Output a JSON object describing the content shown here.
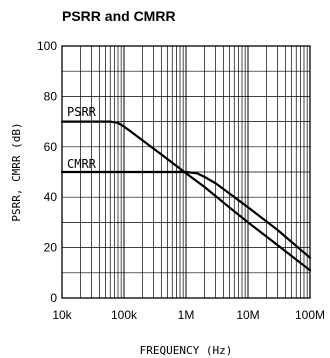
{
  "chart_data": {
    "type": "line",
    "title": "PSRR and CMRR",
    "xlabel": "FREQUENCY (Hz)",
    "ylabel": "PSRR, CMRR (dB)",
    "x_scale": "log",
    "xlim": [
      10000,
      100000000
    ],
    "ylim": [
      0,
      100
    ],
    "x_ticks": [
      10000,
      100000,
      1000000,
      10000000,
      100000000
    ],
    "x_tick_labels": [
      "10k",
      "100k",
      "1M",
      "10M",
      "100M"
    ],
    "y_ticks": [
      0,
      20,
      40,
      60,
      80,
      100
    ],
    "y_tick_labels": [
      "0",
      "20",
      "40",
      "60",
      "80",
      "100"
    ],
    "grid": true,
    "series": [
      {
        "name": "PSRR",
        "x": [
          10000,
          30000,
          60000,
          80000,
          100000,
          130000,
          200000,
          400000,
          1000000,
          2000000,
          5000000,
          10000000,
          30000000,
          100000000
        ],
        "y": [
          70,
          70,
          70,
          69.5,
          68,
          66,
          62.5,
          57,
          49.5,
          44,
          36,
          30,
          21,
          11
        ]
      },
      {
        "name": "CMRR",
        "x": [
          10000,
          100000,
          500000,
          1000000,
          1500000,
          2000000,
          3000000,
          5000000,
          10000000,
          30000000,
          100000000
        ],
        "y": [
          50,
          50,
          50,
          50,
          49.5,
          48,
          45.5,
          41.5,
          36,
          27,
          16
        ]
      }
    ]
  }
}
